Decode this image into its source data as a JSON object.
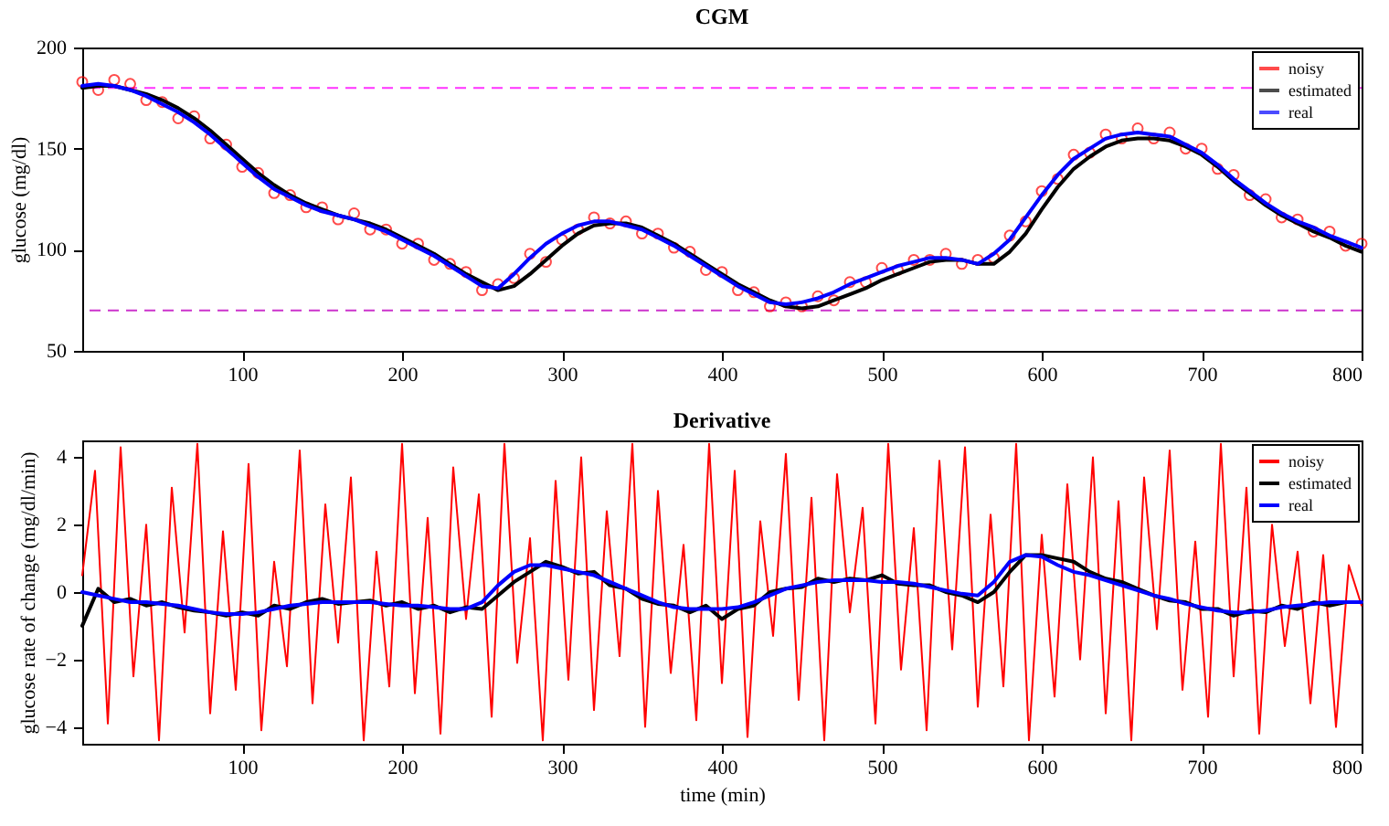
{
  "chart_data": [
    {
      "type": "line",
      "title": "CGM",
      "ylabel": "glucose (mg/dl)",
      "xlim": [
        0,
        800
      ],
      "xticks": [
        100,
        200,
        300,
        400,
        500,
        600,
        700,
        800
      ],
      "ylim": [
        50,
        200
      ],
      "yticks": [
        50,
        100,
        150,
        200
      ],
      "grid": false,
      "legend": "top right",
      "x": [
        0,
        10,
        20,
        30,
        40,
        50,
        60,
        70,
        80,
        90,
        100,
        110,
        120,
        130,
        140,
        150,
        160,
        170,
        180,
        190,
        200,
        210,
        220,
        230,
        240,
        250,
        260,
        270,
        280,
        290,
        300,
        310,
        320,
        330,
        340,
        350,
        360,
        370,
        380,
        390,
        400,
        410,
        420,
        430,
        440,
        450,
        460,
        470,
        480,
        490,
        500,
        510,
        520,
        530,
        540,
        550,
        560,
        570,
        580,
        590,
        600,
        610,
        620,
        630,
        640,
        650,
        660,
        670,
        680,
        690,
        700,
        710,
        720,
        730,
        740,
        750,
        760,
        770,
        780,
        790,
        800
      ],
      "ref_lines": [
        {
          "axis": "y",
          "value": 180,
          "color": "#ff33ff",
          "line_style": "dashed"
        },
        {
          "axis": "y",
          "value": 70,
          "color": "#cc33cc",
          "line_style": "dashed"
        }
      ],
      "series": [
        {
          "name": "noisy",
          "type": "scatter",
          "marker": "circle",
          "color": "#ff0000",
          "values": [
            183,
            179,
            184,
            182,
            174,
            173,
            165,
            166,
            155,
            152,
            141,
            138,
            128,
            127,
            121,
            121,
            115,
            118,
            110,
            110,
            103,
            103,
            95,
            93,
            89,
            80,
            83,
            86,
            98,
            94,
            105,
            110,
            116,
            113,
            114,
            108,
            108,
            101,
            99,
            90,
            89,
            80,
            79,
            72,
            74,
            72,
            77,
            75,
            84,
            84,
            91,
            90,
            95,
            95,
            98,
            93,
            95,
            96,
            107,
            114,
            129,
            135,
            147,
            148,
            157,
            155,
            160,
            155,
            158,
            150,
            150,
            140,
            137,
            127,
            125,
            116,
            115,
            109,
            109,
            102,
            103
          ]
        },
        {
          "name": "estimated",
          "color": "#000000",
          "values": [
            180,
            181,
            181,
            179,
            177,
            174,
            170,
            165,
            159,
            152,
            145,
            138,
            132,
            127,
            123,
            120,
            117,
            115,
            113,
            110,
            106,
            102,
            98,
            93,
            88,
            84,
            80,
            82,
            88,
            95,
            102,
            108,
            112,
            113,
            113,
            111,
            107,
            103,
            98,
            93,
            88,
            83,
            79,
            75,
            72,
            71,
            72,
            75,
            78,
            81,
            85,
            88,
            91,
            94,
            95,
            95,
            93,
            93,
            99,
            108,
            120,
            131,
            140,
            146,
            151,
            154,
            155,
            155,
            154,
            151,
            147,
            141,
            134,
            128,
            122,
            117,
            113,
            109,
            106,
            102,
            99
          ]
        },
        {
          "name": "real",
          "color": "#0000ff",
          "values": [
            181,
            182,
            181,
            179,
            176,
            172,
            168,
            163,
            157,
            150,
            143,
            136,
            130,
            126,
            122,
            119,
            117,
            115,
            112,
            109,
            105,
            101,
            97,
            92,
            87,
            82,
            81,
            88,
            96,
            103,
            108,
            112,
            114,
            114,
            112,
            110,
            106,
            102,
            97,
            92,
            87,
            82,
            78,
            74,
            73,
            74,
            76,
            79,
            83,
            86,
            89,
            92,
            94,
            96,
            96,
            95,
            93,
            98,
            105,
            116,
            127,
            137,
            145,
            150,
            155,
            157,
            158,
            157,
            156,
            152,
            148,
            142,
            135,
            129,
            123,
            118,
            114,
            111,
            107,
            104,
            101
          ]
        }
      ]
    },
    {
      "type": "line",
      "title": "Derivative",
      "xlabel": "time (min)",
      "ylabel": "glucose rate of change (mg/dl/min)",
      "xlim": [
        0,
        800
      ],
      "xticks": [
        100,
        200,
        300,
        400,
        500,
        600,
        700,
        800
      ],
      "ylim": [
        -4.5,
        4.5
      ],
      "yticks": [
        -4,
        -2,
        0,
        2,
        4
      ],
      "grid": false,
      "legend": "top right",
      "x": [
        0,
        10,
        20,
        30,
        40,
        50,
        60,
        70,
        80,
        90,
        100,
        110,
        120,
        130,
        140,
        150,
        160,
        170,
        180,
        190,
        200,
        210,
        220,
        230,
        240,
        250,
        260,
        270,
        280,
        290,
        300,
        310,
        320,
        330,
        340,
        350,
        360,
        370,
        380,
        390,
        400,
        410,
        420,
        430,
        440,
        450,
        460,
        470,
        480,
        490,
        500,
        510,
        520,
        530,
        540,
        550,
        560,
        570,
        580,
        590,
        600,
        610,
        620,
        630,
        640,
        650,
        660,
        670,
        680,
        690,
        700,
        710,
        720,
        730,
        740,
        750,
        760,
        770,
        780,
        790,
        800
      ],
      "series": [
        {
          "name": "noisy",
          "type": "line",
          "color": "#ff0000",
          "x": [
            0,
            8,
            16,
            24,
            32,
            40,
            48,
            56,
            64,
            72,
            80,
            88,
            96,
            104,
            112,
            120,
            128,
            136,
            144,
            152,
            160,
            168,
            176,
            184,
            192,
            200,
            208,
            216,
            224,
            232,
            240,
            248,
            256,
            264,
            272,
            280,
            288,
            296,
            304,
            312,
            320,
            328,
            336,
            344,
            352,
            360,
            368,
            376,
            384,
            392,
            400,
            408,
            416,
            424,
            432,
            440,
            448,
            456,
            464,
            472,
            480,
            488,
            496,
            504,
            512,
            520,
            528,
            536,
            544,
            552,
            560,
            568,
            576,
            584,
            592,
            600,
            608,
            616,
            624,
            632,
            640,
            648,
            656,
            664,
            672,
            680,
            688,
            696,
            704,
            712,
            720,
            728,
            736,
            744,
            752,
            760,
            768,
            776,
            784,
            792,
            800
          ],
          "values": [
            0.5,
            3.6,
            -3.9,
            4.3,
            -2.5,
            2.0,
            -4.4,
            3.1,
            -1.2,
            4.4,
            -3.6,
            1.8,
            -2.9,
            3.8,
            -4.1,
            0.9,
            -2.2,
            4.2,
            -3.3,
            2.6,
            -1.5,
            3.4,
            -4.4,
            1.2,
            -2.8,
            4.4,
            -3.0,
            2.2,
            -4.2,
            3.7,
            -0.8,
            2.9,
            -3.7,
            4.4,
            -2.1,
            1.6,
            -4.4,
            3.3,
            -2.6,
            4.0,
            -3.5,
            2.4,
            -1.9,
            4.4,
            -4.0,
            3.0,
            -2.4,
            1.4,
            -3.8,
            4.4,
            -2.7,
            3.6,
            -4.3,
            2.1,
            -1.3,
            4.1,
            -3.2,
            2.8,
            -4.4,
            3.5,
            -0.6,
            2.5,
            -3.9,
            4.4,
            -2.3,
            1.9,
            -4.1,
            3.9,
            -1.7,
            4.3,
            -3.4,
            2.3,
            -2.8,
            4.4,
            -4.4,
            1.7,
            -3.1,
            3.2,
            -2.0,
            4.0,
            -3.6,
            2.7,
            -4.4,
            3.4,
            -1.1,
            4.2,
            -2.9,
            1.5,
            -3.7,
            4.4,
            -2.5,
            3.1,
            -4.2,
            2.0,
            -1.6,
            1.2,
            -3.3,
            1.1,
            -4.0,
            0.8,
            -0.4
          ]
        },
        {
          "name": "estimated",
          "color": "#000000",
          "values": [
            -1.0,
            0.1,
            -0.3,
            -0.2,
            -0.4,
            -0.3,
            -0.45,
            -0.55,
            -0.6,
            -0.7,
            -0.6,
            -0.7,
            -0.4,
            -0.5,
            -0.3,
            -0.2,
            -0.35,
            -0.3,
            -0.25,
            -0.4,
            -0.3,
            -0.5,
            -0.4,
            -0.6,
            -0.45,
            -0.5,
            -0.1,
            0.3,
            0.6,
            0.9,
            0.75,
            0.55,
            0.6,
            0.2,
            0.1,
            -0.2,
            -0.35,
            -0.4,
            -0.6,
            -0.4,
            -0.8,
            -0.5,
            -0.4,
            0.0,
            0.1,
            0.15,
            0.4,
            0.3,
            0.4,
            0.35,
            0.5,
            0.25,
            0.2,
            0.2,
            0.0,
            -0.1,
            -0.3,
            0.0,
            0.6,
            1.1,
            1.1,
            1.0,
            0.9,
            0.6,
            0.4,
            0.3,
            0.1,
            -0.1,
            -0.25,
            -0.3,
            -0.5,
            -0.5,
            -0.7,
            -0.55,
            -0.6,
            -0.4,
            -0.5,
            -0.3,
            -0.4,
            -0.3,
            -0.3
          ]
        },
        {
          "name": "real",
          "color": "#0000ff",
          "values": [
            0,
            -0.1,
            -0.2,
            -0.3,
            -0.3,
            -0.35,
            -0.4,
            -0.5,
            -0.6,
            -0.65,
            -0.65,
            -0.6,
            -0.5,
            -0.4,
            -0.35,
            -0.3,
            -0.3,
            -0.3,
            -0.3,
            -0.35,
            -0.4,
            -0.4,
            -0.45,
            -0.5,
            -0.5,
            -0.3,
            0.2,
            0.6,
            0.8,
            0.8,
            0.7,
            0.6,
            0.5,
            0.3,
            0.1,
            -0.1,
            -0.3,
            -0.45,
            -0.5,
            -0.5,
            -0.5,
            -0.45,
            -0.3,
            -0.1,
            0.1,
            0.2,
            0.3,
            0.35,
            0.35,
            0.35,
            0.3,
            0.3,
            0.25,
            0.15,
            0.05,
            -0.05,
            -0.1,
            0.3,
            0.9,
            1.1,
            1.05,
            0.8,
            0.6,
            0.5,
            0.35,
            0.2,
            0.05,
            -0.1,
            -0.2,
            -0.35,
            -0.45,
            -0.55,
            -0.6,
            -0.6,
            -0.55,
            -0.45,
            -0.4,
            -0.35,
            -0.3,
            -0.3,
            -0.3
          ]
        }
      ]
    }
  ]
}
